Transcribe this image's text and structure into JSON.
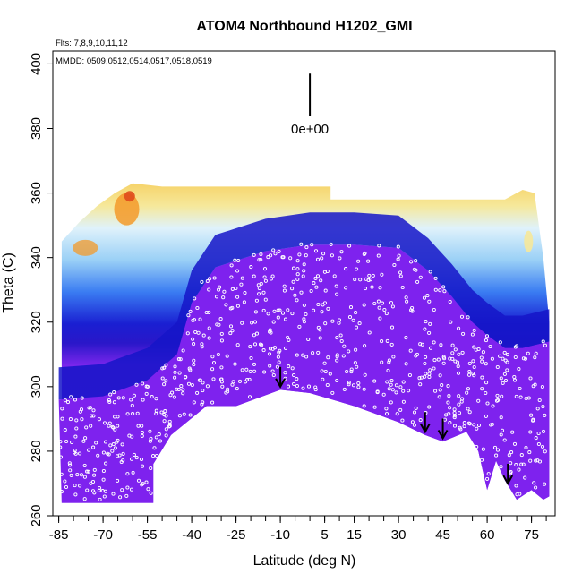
{
  "chart_data": {
    "type": "heatmap",
    "title": "ATOM4 Northbound H1202_GMI",
    "flights_label": "Flts: 7,8,9,10,11,12",
    "dates_label": "MMDD: 0509,0512,0514,0517,0518,0519",
    "xlabel": "Latitude (deg N)",
    "ylabel": "Theta (C)",
    "xlim": [
      -87,
      83
    ],
    "ylim": [
      260,
      404
    ],
    "x_ticks": [
      -85,
      -70,
      -55,
      -40,
      -25,
      -10,
      5,
      15,
      30,
      45,
      60,
      75
    ],
    "y_ticks": [
      260,
      280,
      300,
      320,
      340,
      360,
      380,
      400
    ],
    "scale_bar_label": "0e+00",
    "colors": {
      "background_field": "#7e22ee",
      "deep_blue": "#1515c8",
      "mid_blue": "#3b7bf2",
      "light_blue": "#b9e2f9",
      "pale_yellow": "#f6e89a",
      "orange": "#f39a2a",
      "red": "#e04a1c",
      "marker_outline": "#ffffff",
      "arrow": "#000000"
    },
    "field_top_theta": [
      {
        "lat": -84,
        "theta": 345
      },
      {
        "lat": -78,
        "theta": 351
      },
      {
        "lat": -72,
        "theta": 356
      },
      {
        "lat": -66,
        "theta": 360
      },
      {
        "lat": -60,
        "theta": 363
      },
      {
        "lat": -50,
        "theta": 362
      },
      {
        "lat": -30,
        "theta": 362
      },
      {
        "lat": -10,
        "theta": 362
      },
      {
        "lat": 7,
        "theta": 362
      },
      {
        "lat": 7,
        "theta": 358
      },
      {
        "lat": 40,
        "theta": 358
      },
      {
        "lat": 66,
        "theta": 358
      },
      {
        "lat": 72,
        "theta": 361
      },
      {
        "lat": 76,
        "theta": 360
      },
      {
        "lat": 79,
        "theta": 340
      },
      {
        "lat": 81,
        "theta": 320
      }
    ],
    "field_bottom_theta": [
      {
        "lat": -84,
        "theta": 264
      },
      {
        "lat": -53,
        "theta": 264
      },
      {
        "lat": -53,
        "theta": 276
      },
      {
        "lat": -47,
        "theta": 285
      },
      {
        "lat": -35,
        "theta": 294
      },
      {
        "lat": -25,
        "theta": 294
      },
      {
        "lat": -10,
        "theta": 299
      },
      {
        "lat": 0,
        "theta": 298
      },
      {
        "lat": 15,
        "theta": 294
      },
      {
        "lat": 30,
        "theta": 289
      },
      {
        "lat": 39,
        "theta": 285
      },
      {
        "lat": 45,
        "theta": 283
      },
      {
        "lat": 53,
        "theta": 286
      },
      {
        "lat": 57,
        "theta": 280
      },
      {
        "lat": 60,
        "theta": 268
      },
      {
        "lat": 63,
        "theta": 277
      },
      {
        "lat": 66,
        "theta": 271
      },
      {
        "lat": 70,
        "theta": 265
      },
      {
        "lat": 75,
        "theta": 268
      },
      {
        "lat": 79,
        "theta": 265
      },
      {
        "lat": 81,
        "theta": 266
      }
    ],
    "trop_layer": [
      {
        "lat": -85,
        "theta": 300
      },
      {
        "lat": -70,
        "theta": 301
      },
      {
        "lat": -55,
        "theta": 306
      },
      {
        "lat": -45,
        "theta": 314
      },
      {
        "lat": -40,
        "theta": 330
      },
      {
        "lat": -32,
        "theta": 341
      },
      {
        "lat": -15,
        "theta": 346
      },
      {
        "lat": 0,
        "theta": 348
      },
      {
        "lat": 15,
        "theta": 348
      },
      {
        "lat": 30,
        "theta": 347
      },
      {
        "lat": 40,
        "theta": 340
      },
      {
        "lat": 48,
        "theta": 332
      },
      {
        "lat": 55,
        "theta": 324
      },
      {
        "lat": 60,
        "theta": 320
      },
      {
        "lat": 66,
        "theta": 316
      },
      {
        "lat": 72,
        "theta": 316
      },
      {
        "lat": 81,
        "theta": 318
      }
    ],
    "arrows": [
      {
        "lat": -10,
        "theta": 300
      },
      {
        "lat": 39,
        "theta": 286
      },
      {
        "lat": 45,
        "theta": 284
      },
      {
        "lat": 67,
        "theta": 270
      }
    ],
    "scale_bar": {
      "lat": 0,
      "theta_top": 397,
      "theta_bottom": 384
    }
  }
}
